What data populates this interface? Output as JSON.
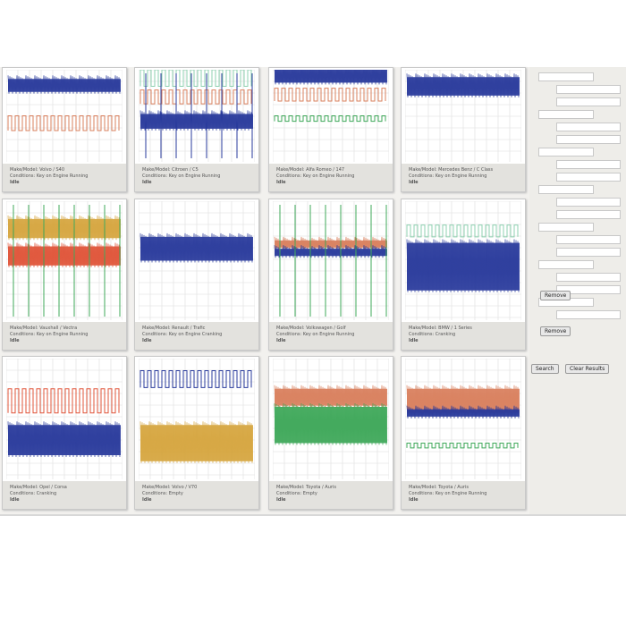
{
  "cards": [
    {
      "make": "Make/Model: Volvo / S40",
      "conditions": "Conditions: Key on Engine Running",
      "state": "Idle"
    },
    {
      "make": "Make/Model: Citroen / C5",
      "conditions": "Conditions: Key on Engine Running",
      "state": "Idle"
    },
    {
      "make": "Make/Model: Alfa Romeo / 147",
      "conditions": "Conditions: Key on Engine Running",
      "state": "Idle"
    },
    {
      "make": "Make/Model: Mercedes Benz / C Class",
      "conditions": "Conditions: Key on Engine Running",
      "state": "Idle"
    },
    {
      "make": "Make/Model: Vauxhall / Vectra",
      "conditions": "Conditions: Key on Engine Running",
      "state": "Idle"
    },
    {
      "make": "Make/Model: Renault / Trafic",
      "conditions": "Conditions: Key on Engine Cranking",
      "state": "Idle"
    },
    {
      "make": "Make/Model: Volkswagen / Golf",
      "conditions": "Conditions: Key on Engine Running",
      "state": "Idle"
    },
    {
      "make": "Make/Model: BMW / 1 Series",
      "conditions": "Conditions: Cranking",
      "state": "Idle"
    },
    {
      "make": "Make/Model: Opel / Corsa",
      "conditions": "Conditions: Cranking",
      "state": "Idle"
    },
    {
      "make": "Make/Model: Volvo / V70",
      "conditions": "Conditions: Empty",
      "state": "Idle"
    },
    {
      "make": "Make/Model: Toyota / Auris",
      "conditions": "Conditions: Empty",
      "state": "Idle"
    },
    {
      "make": "Make/Model: Toyota / Auris",
      "conditions": "Conditions: Key on Engine Running",
      "state": "Idle"
    }
  ],
  "sidebar": {
    "buttons": [
      "Remove",
      "Remove",
      "Search",
      "Clear Results"
    ]
  }
}
